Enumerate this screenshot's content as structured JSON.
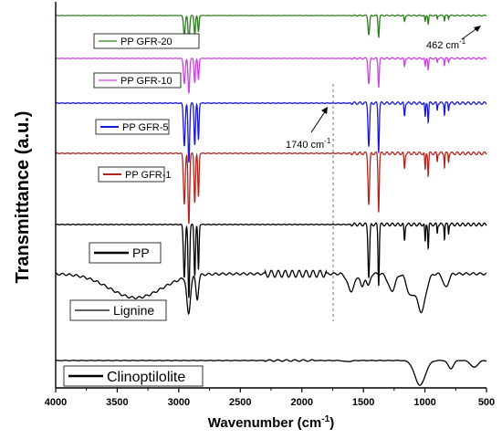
{
  "chart_data": {
    "type": "line",
    "xlabel": "Wavenumber (cm",
    "xlabel_sup": "-1",
    "xlabel_end": ")",
    "ylabel": "Transmittance (a.u.)",
    "xlim": [
      4000,
      500
    ],
    "x_reversed": true,
    "x_ticks": [
      4000,
      3500,
      3000,
      2500,
      2000,
      1500,
      1000,
      500
    ],
    "y_ticks_shown": false,
    "grid": false,
    "legend": "boxed label beside each curve",
    "annotations": [
      {
        "text": "462 cm",
        "sup": "-1",
        "x": 462,
        "note": "arrow to right end of PP GFR-20 curve"
      },
      {
        "text": "1740 cm",
        "sup": "-1",
        "x": 1740,
        "note": "arrow to PP GFR-5 curve; dashed vertical reference line"
      }
    ],
    "reference_line_x": 1740,
    "series": [
      {
        "name": "PP GFR-20",
        "color": "#2e7d1e"
      },
      {
        "name": "PP GFR-10",
        "color": "#cc44e0"
      },
      {
        "name": "PP GFR-5",
        "color": "#1a1ad6"
      },
      {
        "name": "PP GFR-1",
        "color": "#b3261e"
      },
      {
        "name": "PP",
        "color": "#000000"
      },
      {
        "name": "Lignine",
        "color": "#000000"
      },
      {
        "name": "Clinoptilolite",
        "color": "#000000"
      }
    ]
  }
}
